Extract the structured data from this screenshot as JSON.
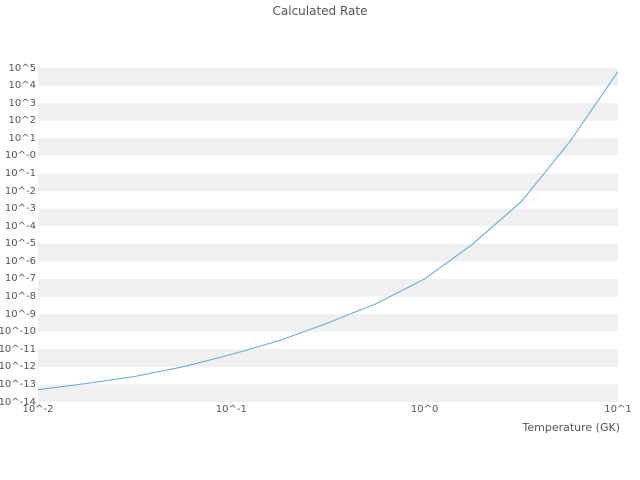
{
  "title": "Calculated Rate",
  "axes": {
    "xlabel": "Temperature (GK)",
    "x_ticks": [
      "10^-2",
      "10^-1",
      "10^0",
      "10^1"
    ],
    "y_ticks": [
      "10^5",
      "10^4",
      "10^3",
      "10^2",
      "10^1",
      "10^-0",
      "10^-1",
      "10^-2",
      "10^-3",
      "10^-4",
      "10^-5",
      "10^-6",
      "10^-7",
      "10^-8",
      "10^-9",
      "10^-10",
      "10^-11",
      "10^-12",
      "10^-13",
      "10^-14"
    ]
  },
  "colors": {
    "line": "#6aaed6",
    "band": "#f0f0f0",
    "text": "#555555",
    "background": "#ffffff"
  },
  "chart_data": {
    "type": "line",
    "title": "Calculated Rate",
    "xlabel": "Temperature (GK)",
    "ylabel": "",
    "xscale": "log",
    "yscale": "log",
    "xlim_log10": [
      -2,
      1
    ],
    "ylim_log10": [
      -14,
      5
    ],
    "grid": "horizontal-bands",
    "legend": "none",
    "series": [
      {
        "name": "calculated-rate",
        "log10_x": [
          -2.0,
          -1.75,
          -1.5,
          -1.25,
          -1.0,
          -0.75,
          -0.5,
          -0.25,
          0.0,
          0.25,
          0.5,
          0.75,
          1.0
        ],
        "log10_y": [
          -13.3,
          -12.95,
          -12.55,
          -12.0,
          -11.3,
          -10.5,
          -9.5,
          -8.4,
          -7.0,
          -5.0,
          -2.6,
          0.8,
          4.8
        ]
      }
    ]
  }
}
